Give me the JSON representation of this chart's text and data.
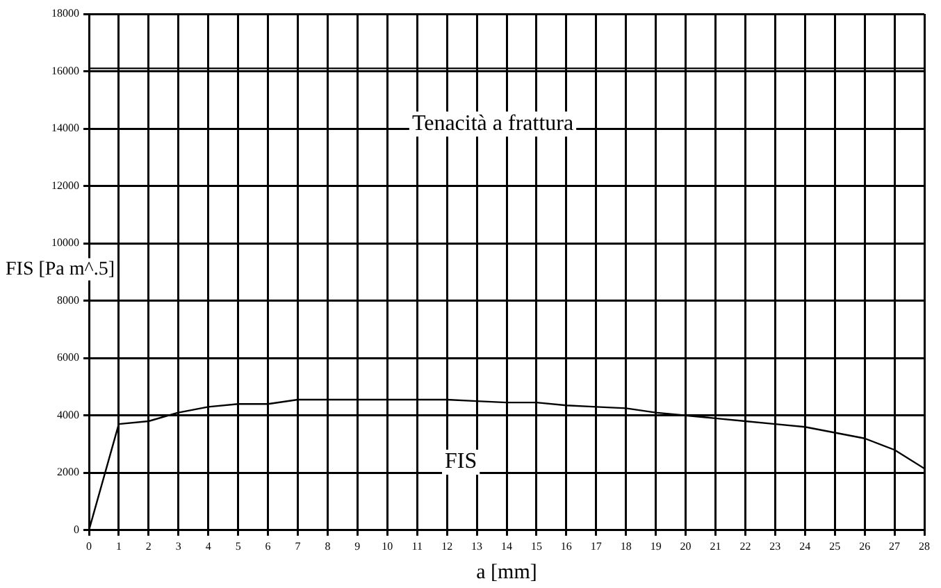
{
  "chart_data": {
    "type": "line",
    "xlabel": "a [mm]",
    "ylabel": "FIS [Pa m^.5]",
    "x": [
      0,
      1,
      2,
      3,
      4,
      5,
      6,
      7,
      8,
      9,
      10,
      11,
      12,
      13,
      14,
      15,
      16,
      17,
      18,
      19,
      20,
      21,
      22,
      23,
      24,
      25,
      26,
      27,
      28
    ],
    "series": [
      {
        "name": "FIS",
        "color": "#000000",
        "values": [
          0,
          3700,
          3800,
          4100,
          4300,
          4400,
          4400,
          4550,
          4550,
          4550,
          4550,
          4550,
          4550,
          4500,
          4450,
          4450,
          4350,
          4300,
          4250,
          4100,
          4000,
          3900,
          3800,
          3700,
          3600,
          3400,
          3200,
          2800,
          2150
        ]
      }
    ],
    "ref_lines": [
      {
        "axis": "y",
        "value": 16100,
        "label": "Tenacità a frattura",
        "color": "#000000"
      }
    ],
    "xlim": [
      0,
      28
    ],
    "xticks": [
      0,
      1,
      2,
      3,
      4,
      5,
      6,
      7,
      8,
      9,
      10,
      11,
      12,
      13,
      14,
      15,
      16,
      17,
      18,
      19,
      20,
      21,
      22,
      23,
      24,
      25,
      26,
      27,
      28
    ],
    "ylim": [
      0,
      18000
    ],
    "yticks": [
      0,
      2000,
      4000,
      6000,
      8000,
      10000,
      12000,
      14000,
      16000,
      18000
    ],
    "grid": true,
    "legend": false,
    "marker": "none",
    "line_style": "solid"
  }
}
